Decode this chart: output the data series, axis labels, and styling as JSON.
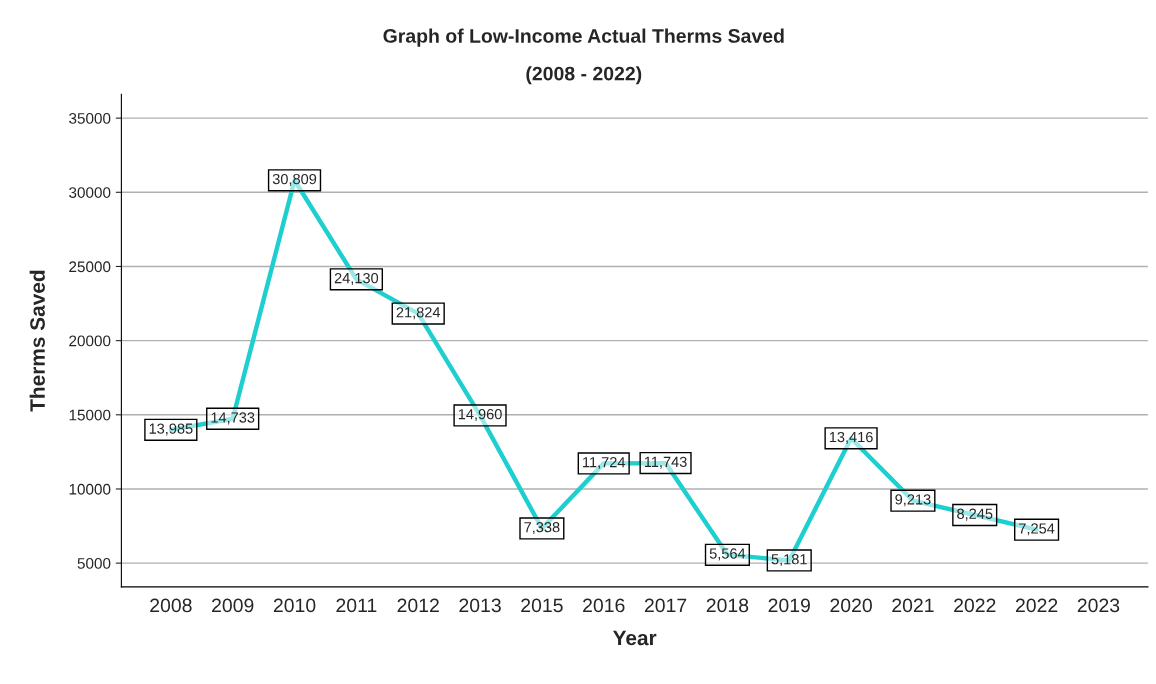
{
  "chart_data": {
    "type": "line",
    "title": "Graph of Low-Income Actual Therms Saved",
    "subtitle": "(2008 - 2022)",
    "xlabel": "Year",
    "ylabel": "Therms Saved",
    "categories": [
      "2008",
      "2009",
      "2010",
      "2011",
      "2012",
      "2013",
      "2015",
      "2016",
      "2017",
      "2018",
      "2019",
      "2020",
      "2021",
      "2022",
      "2022",
      "2023"
    ],
    "series": [
      {
        "color": "#1fcfcf",
        "values": [
          13985,
          14733,
          30809,
          24130,
          21824,
          14960,
          7338,
          11724,
          11743,
          5564,
          5181,
          13416,
          9213,
          8245,
          7254,
          null
        ],
        "value_labels": [
          "13,985",
          "14,733",
          "30,809",
          "24,130",
          "21,824",
          "14,960",
          "7,338",
          "11,724",
          "11,743",
          "5,564",
          "5,181",
          "13,416",
          "9,213",
          "8,245",
          "7,254",
          null
        ]
      }
    ],
    "ylim": [
      3400,
      36600
    ],
    "yticks": [
      5000,
      10000,
      15000,
      20000,
      25000,
      30000,
      35000
    ],
    "grid": "y",
    "line_style": "solid"
  }
}
